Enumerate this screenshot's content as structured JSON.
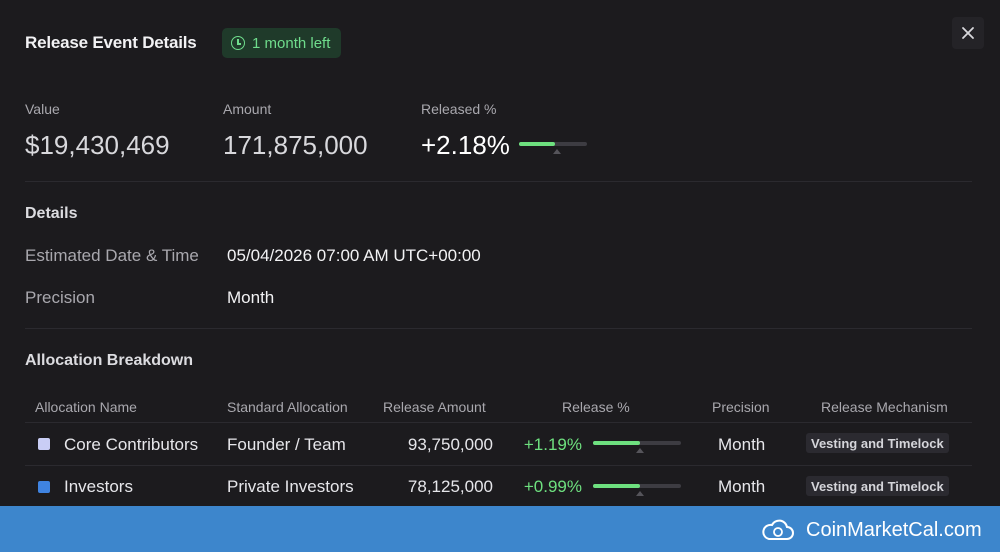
{
  "header": {
    "title": "Release Event Details",
    "badge": "1 month left",
    "icons": {
      "badge": "clock-icon",
      "close": "close-icon"
    }
  },
  "stats": {
    "value_label": "Value",
    "value": "$19,430,469",
    "amount_label": "Amount",
    "amount": "171,875,000",
    "released_label": "Released %",
    "released": "+2.18%",
    "released_bar_fraction": 0.53
  },
  "details": {
    "title": "Details",
    "date_label": "Estimated Date & Time",
    "date_value": "05/04/2026 07:00 AM UTC+00:00",
    "precision_label": "Precision",
    "precision_value": "Month"
  },
  "allocation": {
    "title": "Allocation Breakdown",
    "columns": [
      "Allocation Name",
      "Standard Allocation",
      "Release Amount",
      "Release %",
      "Precision",
      "Release Mechanism"
    ],
    "rows": [
      {
        "name": "Core Contributors",
        "swatch": "#c9cdf5",
        "standard": "Founder / Team",
        "amount": "93,750,000",
        "pct": "+1.19%",
        "bar_fraction": 0.53,
        "precision": "Month",
        "mechanism": "Vesting and Timelock"
      },
      {
        "name": "Investors",
        "swatch": "#3f83e0",
        "standard": "Private Investors",
        "amount": "78,125,000",
        "pct": "+0.99%",
        "bar_fraction": 0.53,
        "precision": "Month",
        "mechanism": "Vesting and Timelock"
      }
    ]
  },
  "colors": {
    "accent_green": "#6ee07f",
    "footer_blue": "#3d86cc"
  },
  "footer": {
    "brand": "CoinMarketCal.com",
    "logo_icon": "cloud-coin-icon"
  }
}
